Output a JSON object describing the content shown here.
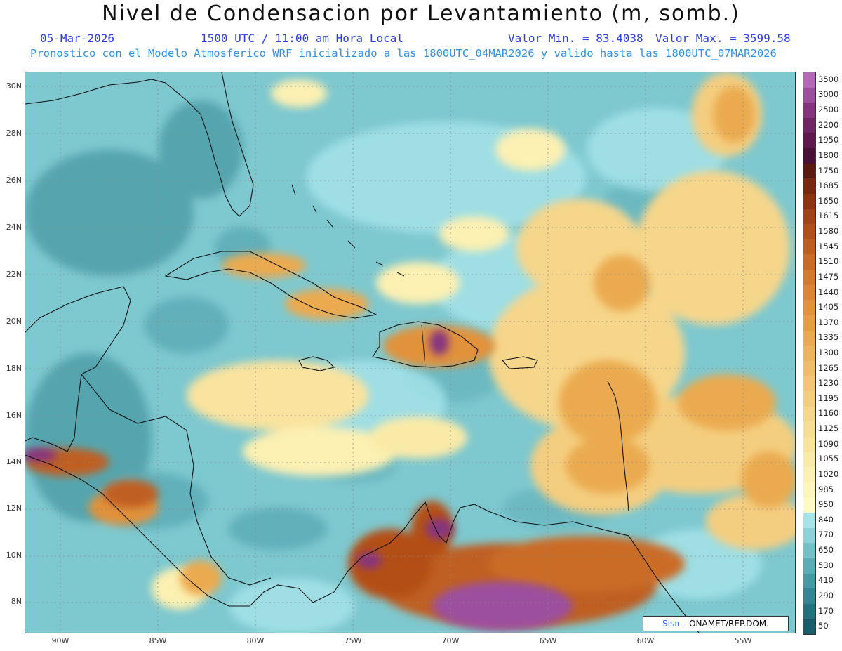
{
  "title": "Nivel de Condensacion por Levantamiento (m, somb.)",
  "date": "05-Mar-2026",
  "time": "1500 UTC / 11:00 am Hora Local",
  "valmin": "Valor Min. = 83.4038",
  "valmax": "Valor Max. = 3599.58",
  "info": "Pronostico con el Modelo Atmosferico WRF inicializado a las 1800UTC_04MAR2026 y valido hasta las  1800UTC_07MAR2026",
  "lat_labels": [
    "30N",
    "28N",
    "26N",
    "24N",
    "22N",
    "20N",
    "18N",
    "16N",
    "14N",
    "12N",
    "10N",
    "8N"
  ],
  "lon_labels": [
    "90W",
    "85W",
    "80W",
    "75W",
    "70W",
    "65W",
    "60W",
    "55W"
  ],
  "colorbar": {
    "labels": [
      "3500",
      "3000",
      "2500",
      "2200",
      "1950",
      "1800",
      "1750",
      "1685",
      "1650",
      "1615",
      "1580",
      "1545",
      "1510",
      "1475",
      "1440",
      "1405",
      "1370",
      "1335",
      "1300",
      "1265",
      "1230",
      "1195",
      "1160",
      "1125",
      "1090",
      "1055",
      "1020",
      "985",
      "950",
      "840",
      "770",
      "650",
      "530",
      "410",
      "290",
      "170",
      "50"
    ],
    "colors": [
      "#b466b8",
      "#9c4f9e",
      "#86347f",
      "#702565",
      "#5e1a4f",
      "#4a0f36",
      "#5c1a0e",
      "#7a2710",
      "#8f3412",
      "#a34216",
      "#b34f19",
      "#c05e20",
      "#cb6c26",
      "#d4792c",
      "#dc8633",
      "#e2923b",
      "#e79d44",
      "#ebaa50",
      "#eeb45c",
      "#f0bd68",
      "#f2c674",
      "#f4ce80",
      "#f6d68b",
      "#f7dd95",
      "#f9e39f",
      "#faeaa8",
      "#fcf0b2",
      "#fdf5bb",
      "#fffac4",
      "#a7e4ea",
      "#8ed2d9",
      "#74bfc8",
      "#5cacb7",
      "#4898a6",
      "#368494",
      "#267180",
      "#1a5e6d"
    ]
  },
  "credit": {
    "logo": "Sisπ",
    "org": "– ONAMET/REP.DOM."
  },
  "palette": {
    "ocean": "#7ec8cf",
    "ocean_dark": "#4f9fa9",
    "land_warm": "#f4d07c",
    "land_orange": "#e28b3a",
    "land_brown": "#b0521c",
    "purple": "#8a3b8c"
  }
}
